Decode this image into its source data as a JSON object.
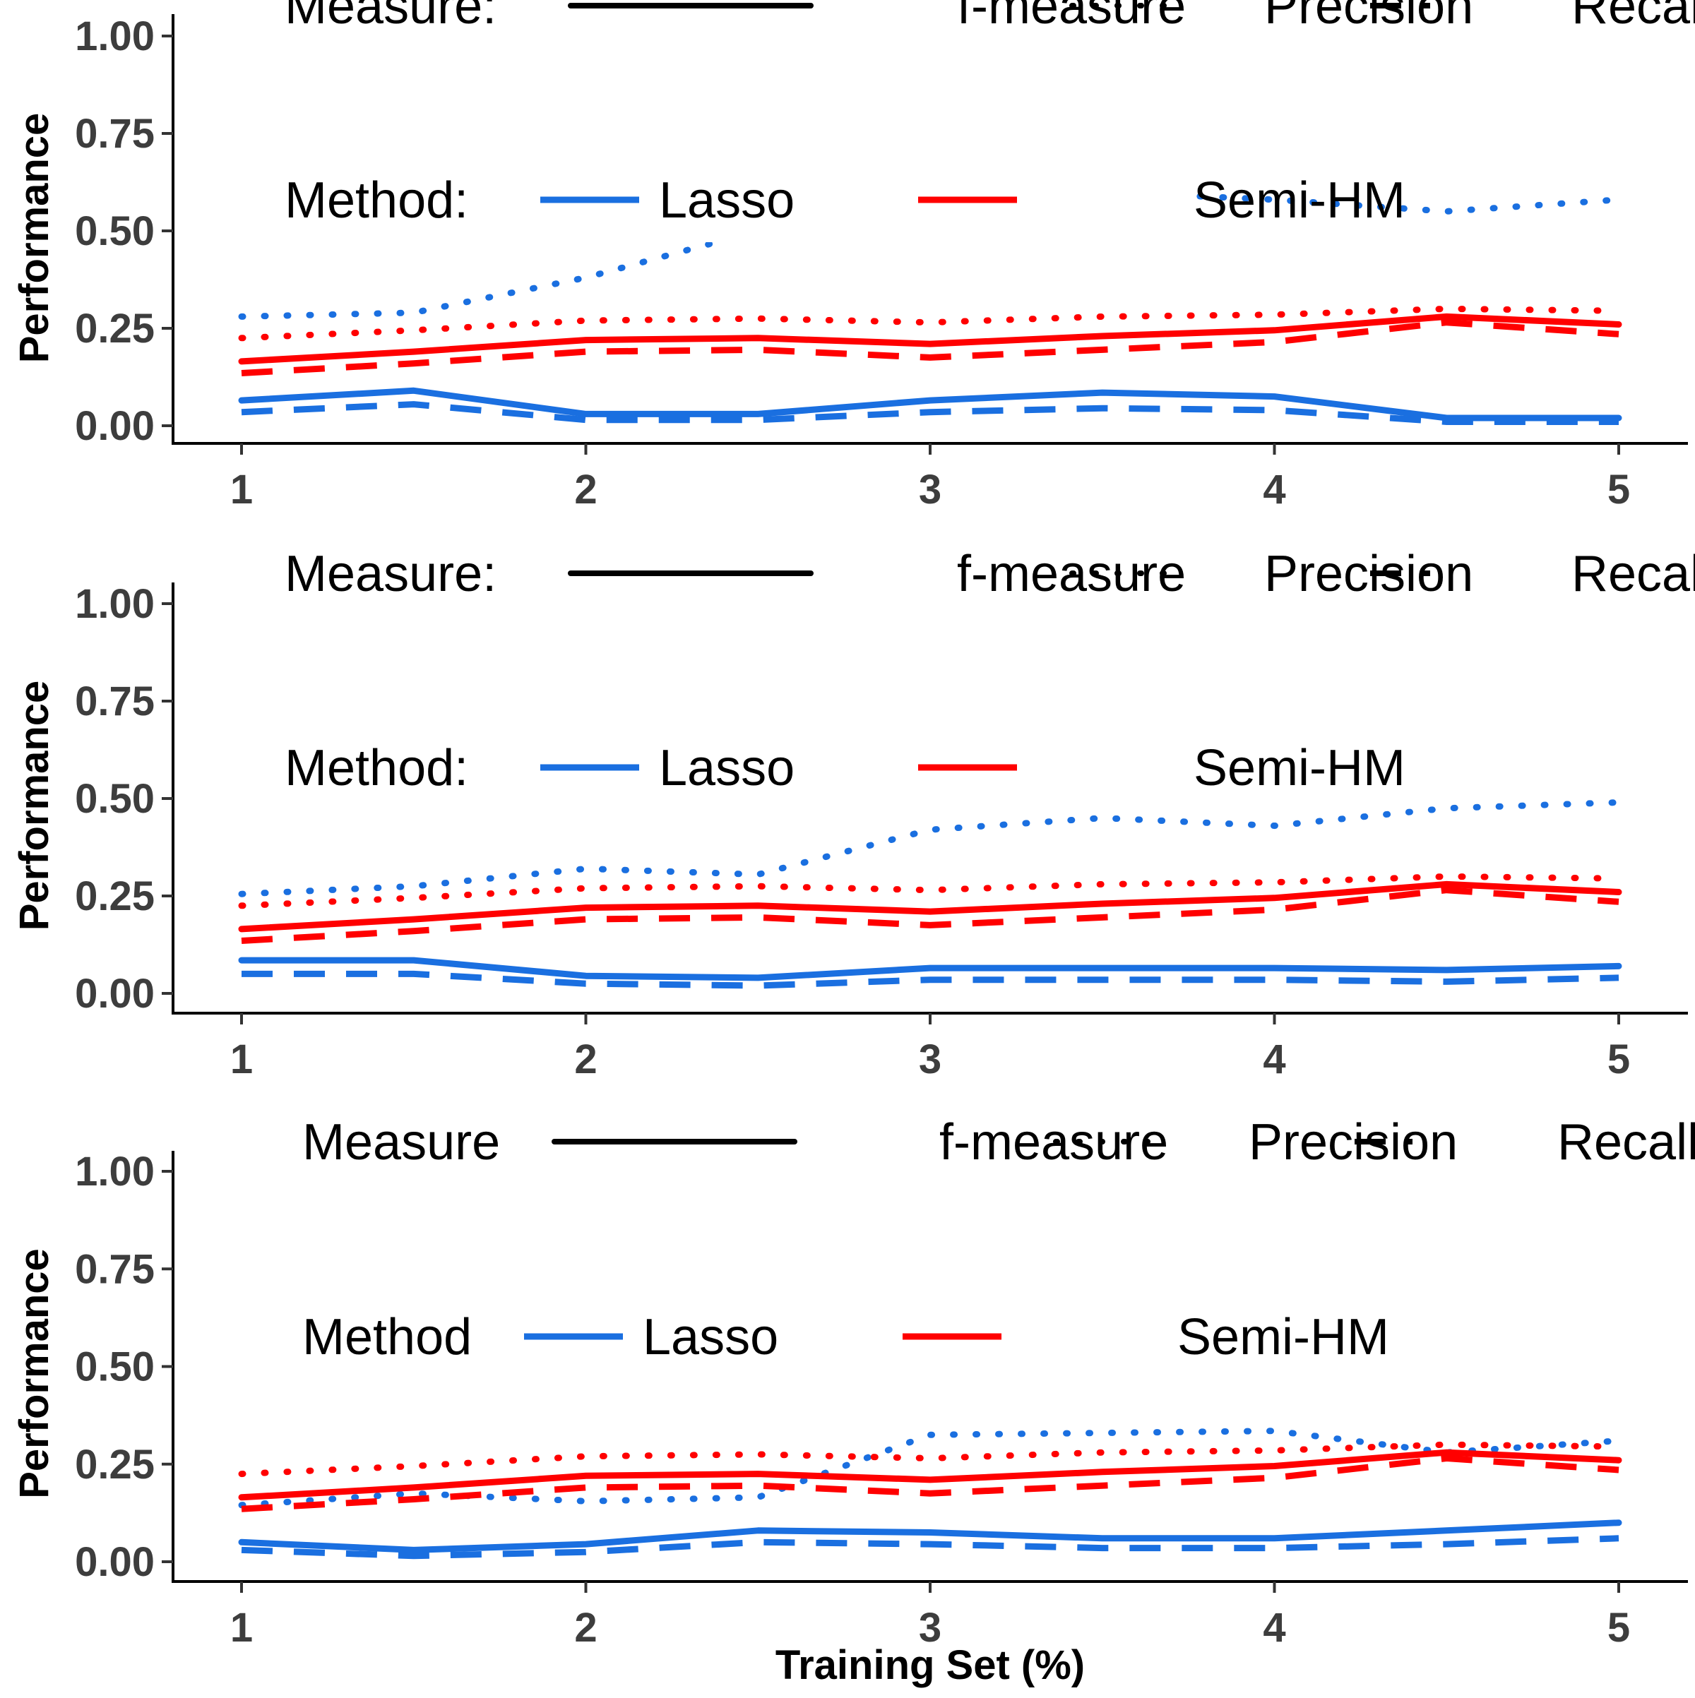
{
  "chart_data": [
    {
      "type": "line",
      "ylabel": "Performance",
      "xlabel": "",
      "x_ticks": [
        "1",
        "2",
        "3",
        "4",
        "5"
      ],
      "y_ticks": [
        "0.00",
        "0.25",
        "0.50",
        "0.75",
        "1.00"
      ],
      "xlim": [
        0.8,
        5.2
      ],
      "ylim": [
        0,
        1
      ],
      "grid": false,
      "legend": {
        "measure_title": "Measure:",
        "measure_items": [
          "f-measure",
          "Precision",
          "Recall"
        ],
        "method_title": "Method:",
        "method_items": [
          "Lasso",
          "Semi-HM"
        ],
        "placement": "top-left"
      },
      "x": [
        1,
        1.5,
        2,
        2.5,
        3,
        3.5,
        4,
        4.5,
        5
      ],
      "series": [
        {
          "method": "Lasso",
          "measure": "f-measure",
          "values": [
            0.065,
            0.09,
            0.03,
            0.03,
            0.065,
            0.085,
            0.075,
            0.02,
            0.02
          ]
        },
        {
          "method": "Lasso",
          "measure": "Precision",
          "values": [
            0.28,
            0.29,
            0.38,
            0.5,
            0.59,
            0.6,
            0.58,
            0.55,
            0.58
          ]
        },
        {
          "method": "Lasso",
          "measure": "Recall",
          "values": [
            0.035,
            0.055,
            0.015,
            0.015,
            0.035,
            0.045,
            0.04,
            0.01,
            0.01
          ]
        },
        {
          "method": "Semi-HM",
          "measure": "f-measure",
          "values": [
            0.165,
            0.19,
            0.22,
            0.225,
            0.21,
            0.23,
            0.245,
            0.28,
            0.26
          ]
        },
        {
          "method": "Semi-HM",
          "measure": "Precision",
          "values": [
            0.225,
            0.245,
            0.27,
            0.275,
            0.265,
            0.28,
            0.285,
            0.3,
            0.295
          ]
        },
        {
          "method": "Semi-HM",
          "measure": "Recall",
          "values": [
            0.135,
            0.16,
            0.19,
            0.195,
            0.175,
            0.195,
            0.215,
            0.265,
            0.235
          ]
        }
      ]
    },
    {
      "type": "line",
      "ylabel": "Performance",
      "xlabel": "",
      "x_ticks": [
        "1",
        "2",
        "3",
        "4",
        "5"
      ],
      "y_ticks": [
        "0.00",
        "0.25",
        "0.50",
        "0.75",
        "1.00"
      ],
      "xlim": [
        0.8,
        5.2
      ],
      "ylim": [
        0,
        1
      ],
      "grid": false,
      "legend": {
        "measure_title": "Measure:",
        "measure_items": [
          "f-measure",
          "Precision",
          "Recall"
        ],
        "method_title": "Method:",
        "method_items": [
          "Lasso",
          "Semi-HM"
        ],
        "placement": "top-left"
      },
      "x": [
        1,
        1.5,
        2,
        2.5,
        3,
        3.5,
        4,
        4.5,
        5
      ],
      "series": [
        {
          "method": "Lasso",
          "measure": "f-measure",
          "values": [
            0.085,
            0.085,
            0.045,
            0.04,
            0.065,
            0.065,
            0.065,
            0.06,
            0.07
          ]
        },
        {
          "method": "Lasso",
          "measure": "Precision",
          "values": [
            0.255,
            0.275,
            0.32,
            0.305,
            0.42,
            0.45,
            0.43,
            0.475,
            0.49
          ]
        },
        {
          "method": "Lasso",
          "measure": "Recall",
          "values": [
            0.05,
            0.05,
            0.025,
            0.02,
            0.035,
            0.035,
            0.035,
            0.03,
            0.04
          ]
        },
        {
          "method": "Semi-HM",
          "measure": "f-measure",
          "values": [
            0.165,
            0.19,
            0.22,
            0.225,
            0.21,
            0.23,
            0.245,
            0.28,
            0.26
          ]
        },
        {
          "method": "Semi-HM",
          "measure": "Precision",
          "values": [
            0.225,
            0.245,
            0.27,
            0.275,
            0.265,
            0.28,
            0.285,
            0.3,
            0.295
          ]
        },
        {
          "method": "Semi-HM",
          "measure": "Recall",
          "values": [
            0.135,
            0.16,
            0.19,
            0.195,
            0.175,
            0.195,
            0.215,
            0.265,
            0.235
          ]
        }
      ]
    },
    {
      "type": "line",
      "ylabel": "Performance",
      "xlabel": "Training Set (%)",
      "x_ticks": [
        "1",
        "2",
        "3",
        "4",
        "5"
      ],
      "y_ticks": [
        "0.00",
        "0.25",
        "0.50",
        "0.75",
        "1.00"
      ],
      "xlim": [
        0.8,
        5.2
      ],
      "ylim": [
        0,
        1
      ],
      "grid": false,
      "legend": {
        "measure_title": "Measure",
        "measure_items": [
          "f-measure",
          "Precision",
          "Recall"
        ],
        "method_title": "Method",
        "method_items": [
          "Lasso",
          "Semi-HM"
        ],
        "placement": "top-left"
      },
      "x": [
        1,
        1.5,
        2,
        2.5,
        3,
        3.5,
        4,
        4.5,
        5
      ],
      "series": [
        {
          "method": "Lasso",
          "measure": "f-measure",
          "values": [
            0.05,
            0.03,
            0.045,
            0.08,
            0.075,
            0.06,
            0.06,
            0.08,
            0.1
          ]
        },
        {
          "method": "Lasso",
          "measure": "Precision",
          "values": [
            0.145,
            0.175,
            0.155,
            0.165,
            0.325,
            0.33,
            0.335,
            0.28,
            0.31
          ]
        },
        {
          "method": "Lasso",
          "measure": "Recall",
          "values": [
            0.03,
            0.015,
            0.025,
            0.05,
            0.045,
            0.035,
            0.035,
            0.045,
            0.06
          ]
        },
        {
          "method": "Semi-HM",
          "measure": "f-measure",
          "values": [
            0.165,
            0.19,
            0.22,
            0.225,
            0.21,
            0.23,
            0.245,
            0.28,
            0.26
          ]
        },
        {
          "method": "Semi-HM",
          "measure": "Precision",
          "values": [
            0.225,
            0.245,
            0.27,
            0.275,
            0.265,
            0.28,
            0.285,
            0.3,
            0.295
          ]
        },
        {
          "method": "Semi-HM",
          "measure": "Recall",
          "values": [
            0.135,
            0.16,
            0.19,
            0.195,
            0.175,
            0.195,
            0.215,
            0.265,
            0.235
          ]
        }
      ]
    }
  ],
  "colors": {
    "Lasso": "#1a6fe0",
    "Semi-HM": "#ff0000",
    "legend_key": "#000000",
    "axis": "#000000",
    "tick_label": "#3d3d3d"
  },
  "line_styles": {
    "f-measure": "solid",
    "Precision": "dotted",
    "Recall": "dashed"
  }
}
